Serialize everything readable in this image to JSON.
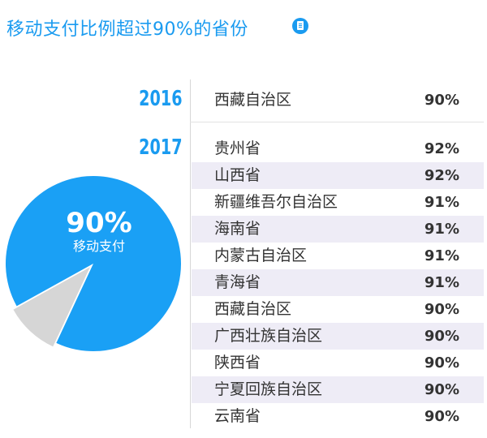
{
  "title": "移动支付比例超过90%的省份",
  "icons": {
    "title_icon": "document-icon"
  },
  "colors": {
    "accent": "#1a9bf0",
    "pie_main": "#1aa0f5",
    "pie_rest": "#d6d6d6",
    "row_shade": "#eeecf6"
  },
  "pie": {
    "value_label": "90%",
    "label": "移动支付",
    "value": 90
  },
  "chart_data": {
    "type": "table",
    "title": "移动支付比例超过90%的省份",
    "pie": {
      "value": 90,
      "label": "移动支付"
    },
    "groups": [
      {
        "year": "2016",
        "rows": [
          {
            "province": "西藏自治区",
            "value": "90%"
          }
        ]
      },
      {
        "year": "2017",
        "rows": [
          {
            "province": "贵州省",
            "value": "92%"
          },
          {
            "province": "山西省",
            "value": "92%"
          },
          {
            "province": "新疆维吾尔自治区",
            "value": "91%"
          },
          {
            "province": "海南省",
            "value": "91%"
          },
          {
            "province": "内蒙古自治区",
            "value": "91%"
          },
          {
            "province": "青海省",
            "value": "91%"
          },
          {
            "province": "西藏自治区",
            "value": "90%"
          },
          {
            "province": "广西壮族自治区",
            "value": "90%"
          },
          {
            "province": "陕西省",
            "value": "90%"
          },
          {
            "province": "宁夏回族自治区",
            "value": "90%"
          },
          {
            "province": "云南省",
            "value": "90%"
          }
        ]
      }
    ]
  }
}
